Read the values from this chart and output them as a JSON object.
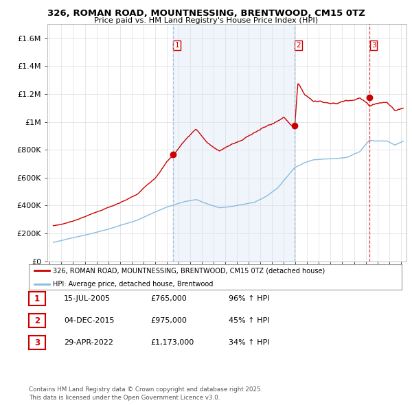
{
  "title": "326, ROMAN ROAD, MOUNTNESSING, BRENTWOOD, CM15 0TZ",
  "subtitle": "Price paid vs. HM Land Registry's House Price Index (HPI)",
  "ylabel_values": [
    0,
    200000,
    400000,
    600000,
    800000,
    1000000,
    1200000,
    1400000,
    1600000
  ],
  "ylim": [
    0,
    1700000
  ],
  "xlim_start": 1994.8,
  "xlim_end": 2025.5,
  "sale_decimal": [
    2005.537,
    2015.922,
    2022.326
  ],
  "sale_prices": [
    765000,
    975000,
    1173000
  ],
  "sale_labels": [
    "1",
    "2",
    "3"
  ],
  "vline_colors": [
    "#9ab8d8",
    "#9ab8d8",
    "#dd2222"
  ],
  "vline_styles": [
    "--",
    "--",
    "--"
  ],
  "shade_color": "#ddeeff",
  "property_line_color": "#cc0000",
  "hpi_line_color": "#88bbdd",
  "legend_entries": [
    "326, ROMAN ROAD, MOUNTNESSING, BRENTWOOD, CM15 0TZ (detached house)",
    "HPI: Average price, detached house, Brentwood"
  ],
  "table_rows": [
    {
      "num": "1",
      "date": "15-JUL-2005",
      "price": "£765,000",
      "change": "96% ↑ HPI"
    },
    {
      "num": "2",
      "date": "04-DEC-2015",
      "price": "£975,000",
      "change": "45% ↑ HPI"
    },
    {
      "num": "3",
      "date": "29-APR-2022",
      "price": "£1,173,000",
      "change": "34% ↑ HPI"
    }
  ],
  "footer": "Contains HM Land Registry data © Crown copyright and database right 2025.\nThis data is licensed under the Open Government Licence v3.0.",
  "background_color": "#ffffff",
  "grid_color": "#dddddd",
  "prop_known_times": [
    1995.3,
    1996.0,
    1997.0,
    1998.5,
    2000.0,
    2001.0,
    2002.5,
    2004.0,
    2005.0,
    2005.537,
    2006.5,
    2007.5,
    2008.5,
    2009.5,
    2010.5,
    2011.5,
    2012.5,
    2013.5,
    2014.5,
    2015.0,
    2015.922,
    2016.2,
    2016.8,
    2017.5,
    2018.5,
    2019.5,
    2020.5,
    2021.5,
    2022.326,
    2023.0,
    2023.8,
    2024.5,
    2025.2
  ],
  "prop_known_vals": [
    255000,
    265000,
    290000,
    340000,
    390000,
    420000,
    480000,
    600000,
    720000,
    765000,
    870000,
    960000,
    860000,
    800000,
    850000,
    880000,
    940000,
    980000,
    1020000,
    1050000,
    975000,
    1300000,
    1220000,
    1180000,
    1180000,
    1170000,
    1200000,
    1230000,
    1173000,
    1200000,
    1210000,
    1150000,
    1170000
  ],
  "hpi_known_times": [
    1995.3,
    1996.0,
    1997.0,
    1998.5,
    2000.0,
    2001.0,
    2002.5,
    2004.0,
    2005.0,
    2005.537,
    2006.5,
    2007.5,
    2008.5,
    2009.5,
    2010.5,
    2011.5,
    2012.5,
    2013.5,
    2014.5,
    2015.0,
    2015.922,
    2016.8,
    2017.5,
    2018.5,
    2019.5,
    2020.5,
    2021.5,
    2022.326,
    2023.0,
    2023.8,
    2024.5,
    2025.2
  ],
  "hpi_known_vals": [
    135000,
    148000,
    168000,
    195000,
    228000,
    255000,
    295000,
    355000,
    390000,
    405000,
    430000,
    445000,
    415000,
    390000,
    400000,
    415000,
    430000,
    470000,
    530000,
    580000,
    673000,
    710000,
    730000,
    740000,
    740000,
    750000,
    790000,
    875000,
    870000,
    870000,
    840000,
    870000
  ]
}
